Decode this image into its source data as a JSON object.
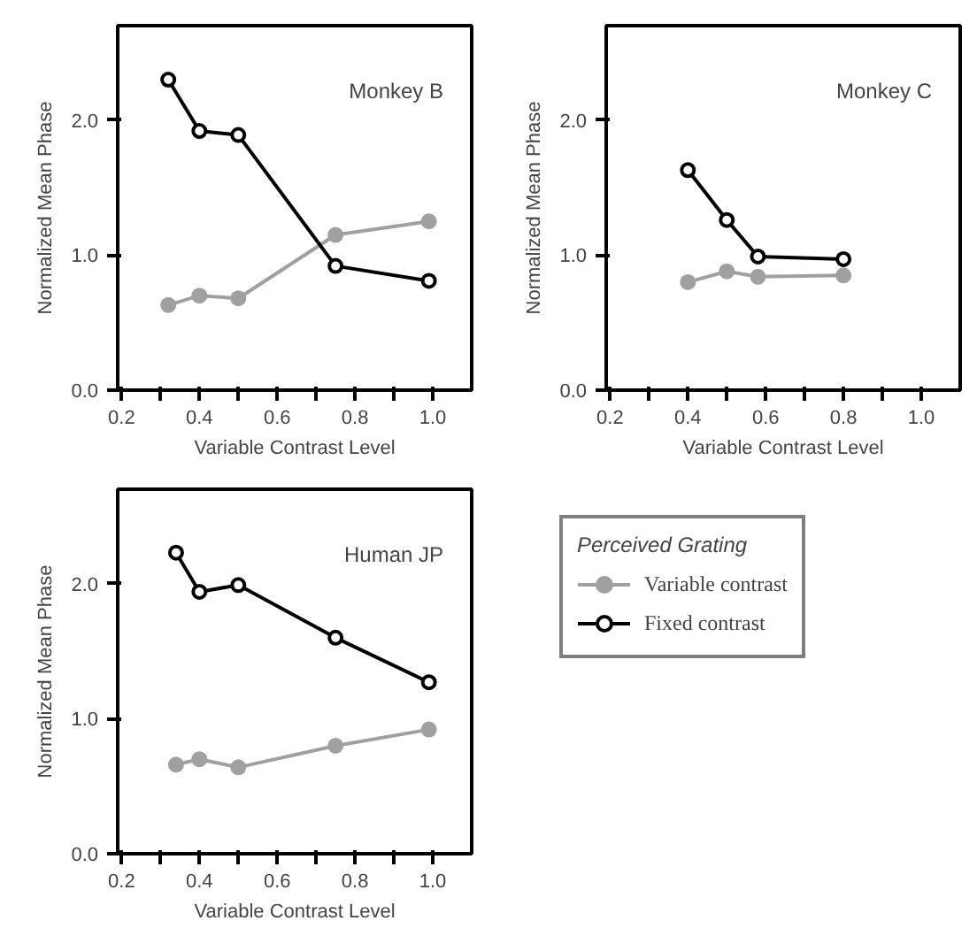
{
  "chart_data": [
    {
      "type": "line",
      "title": "Monkey B",
      "xlabel": "Variable Contrast Level",
      "ylabel": "Normalized Mean Phase",
      "xlim": [
        0.19,
        1.1
      ],
      "ylim": [
        0,
        2.7
      ],
      "xticks": [
        0.2,
        {
          "value": 0.3,
          "label": null
        },
        0.4,
        {
          "value": 0.5,
          "label": null
        },
        0.6,
        {
          "value": 0.7,
          "label": null
        },
        0.8,
        {
          "value": 0.9,
          "label": null
        },
        {
          "value": 1.0,
          "label": "1.0"
        }
      ],
      "yticks": [
        {
          "value": 0,
          "label": "0.0"
        },
        {
          "value": 1,
          "label": "1.0"
        },
        {
          "value": 2,
          "label": "2.0"
        }
      ],
      "grid": false,
      "legend": false,
      "marker": "circle",
      "line_style": "solid",
      "series": [
        {
          "color": "#a0a0a0",
          "x": [
            0.32,
            0.4,
            0.5,
            0.75,
            0.99
          ],
          "values": [
            0.63,
            0.7,
            0.68,
            1.15,
            1.25
          ]
        },
        {
          "color": "#000000",
          "x": [
            0.32,
            0.4,
            0.5,
            0.75,
            0.99
          ],
          "values": [
            2.3,
            1.92,
            1.89,
            0.92,
            0.81
          ]
        }
      ]
    },
    {
      "type": "line",
      "title": "Monkey C",
      "xlabel": "Variable Contrast Level",
      "ylabel": "Normalized Mean Phase",
      "xlim": [
        0.19,
        1.1
      ],
      "ylim": [
        0,
        2.7
      ],
      "xticks": [
        0.2,
        {
          "value": 0.3,
          "label": null
        },
        0.4,
        {
          "value": 0.5,
          "label": null
        },
        0.6,
        {
          "value": 0.7,
          "label": null
        },
        0.8,
        {
          "value": 0.9,
          "label": null
        },
        {
          "value": 1.0,
          "label": "1.0"
        }
      ],
      "yticks": [
        {
          "value": 0,
          "label": "0.0"
        },
        {
          "value": 1,
          "label": "1.0"
        },
        {
          "value": 2,
          "label": "2.0"
        }
      ],
      "grid": false,
      "legend": false,
      "marker": "circle",
      "line_style": "solid",
      "series": [
        {
          "color": "#a0a0a0",
          "x": [
            0.4,
            0.5,
            0.58,
            0.8
          ],
          "values": [
            0.8,
            0.88,
            0.84,
            0.85
          ]
        },
        {
          "color": "#000000",
          "x": [
            0.4,
            0.5,
            0.58,
            0.8
          ],
          "values": [
            1.63,
            1.26,
            0.99,
            0.97
          ]
        }
      ]
    },
    {
      "type": "line",
      "title": "Human JP",
      "xlabel": "Variable Contrast Level",
      "ylabel": "Normalized Mean Phase",
      "xlim": [
        0.19,
        1.1
      ],
      "ylim": [
        0,
        2.7
      ],
      "xticks": [
        0.2,
        {
          "value": 0.3,
          "label": null
        },
        0.4,
        {
          "value": 0.5,
          "label": null
        },
        0.6,
        {
          "value": 0.7,
          "label": null
        },
        0.8,
        {
          "value": 0.9,
          "label": null
        },
        {
          "value": 1.0,
          "label": "1.0"
        }
      ],
      "yticks": [
        {
          "value": 0,
          "label": "0.0"
        },
        {
          "value": 1,
          "label": "1.0"
        },
        {
          "value": 2,
          "label": "2.0"
        }
      ],
      "grid": false,
      "legend": "right",
      "legend_title": "Perceived Grating",
      "marker": "circle",
      "line_style": "solid",
      "series": [
        {
          "name": "Variable contrast",
          "color": "#a0a0a0",
          "x": [
            0.34,
            0.4,
            0.5,
            0.75,
            0.99
          ],
          "values": [
            0.66,
            0.7,
            0.64,
            0.8,
            0.92
          ]
        },
        {
          "name": "Fixed contrast",
          "color": "#000000",
          "x": [
            0.34,
            0.4,
            0.5,
            0.75,
            0.99
          ],
          "values": [
            2.23,
            1.94,
            1.99,
            1.6,
            1.27
          ]
        }
      ]
    }
  ]
}
